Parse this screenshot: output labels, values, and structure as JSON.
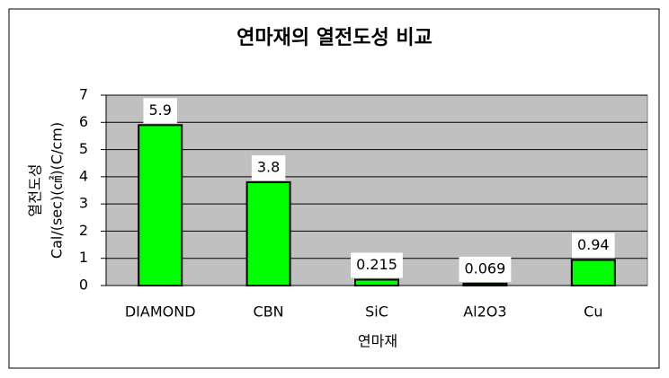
{
  "chart_data": {
    "type": "bar",
    "title": "연마재의 열전도성 비교",
    "xlabel": "연마재",
    "ylabel": [
      "열전도성",
      "Cal/(sec)(㎠)(C/cm)"
    ],
    "categories": [
      "DIAMOND",
      "CBN",
      "SiC",
      "Al2O3",
      "Cu"
    ],
    "values": [
      5.9,
      3.8,
      0.215,
      0.069,
      0.94
    ],
    "color": "#00ff00",
    "plot_background": "#c0c0c0",
    "ylim": [
      0,
      7
    ],
    "yticks": [
      0,
      1,
      2,
      3,
      4,
      5,
      6,
      7
    ],
    "grid": true
  }
}
